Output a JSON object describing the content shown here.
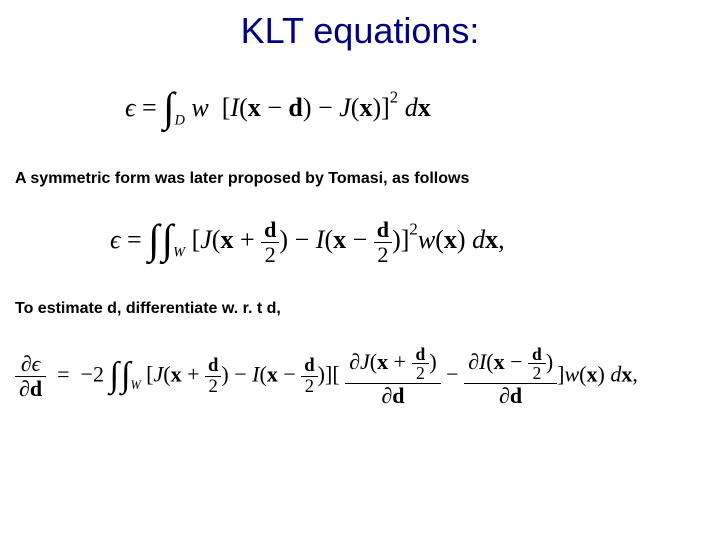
{
  "title": {
    "text": "KLT equations:",
    "color": "#000080",
    "fontsize": 36
  },
  "body_text_fontsize": 16,
  "eq_color": "#000000",
  "background_color": "#ffffff",
  "equation1": {
    "epsilon": "ϵ",
    "eq": "=",
    "int": "∫",
    "domain": "D",
    "w": "w",
    "lb": "[",
    "I": "I",
    "lp1": "(",
    "x": "x",
    "minus": "−",
    "d": "d",
    "rp1": ")",
    "J": "J",
    "lp2": "(",
    "rp2": ")",
    "rb": "]",
    "sq": "2",
    "dx": "dx",
    "fontsize": 26
  },
  "text1": "A symmetric form was later proposed by Tomasi, as follows",
  "equation2": {
    "epsilon": "ϵ",
    "eq": "=",
    "int": "∫",
    "domain": "W",
    "lb": "[",
    "J": "J",
    "lp1": "(",
    "x": "x",
    "plus": "+",
    "d": "d",
    "two": "2",
    "rp1": ")",
    "minus": "−",
    "I": "I",
    "lp2": "(",
    "rp2": ")",
    "rb": "]",
    "sq": "2",
    "w": "w",
    "lp3": "(",
    "rp3": ")",
    "dx": "dx",
    "comma": ",",
    "fontsize": 26
  },
  "text2_a": "To estimate ",
  "text2_d1": "d",
  "text2_b": ", differentiate w. r. t ",
  "text2_d2": "d,",
  "equation3": {
    "partial": "∂",
    "epsilon": "ϵ",
    "d": "d",
    "eq": "=",
    "minus2": "−2",
    "int": "∫",
    "domain": "W",
    "lb": "[",
    "J": "J",
    "lp": "(",
    "x": "x",
    "plus": "+",
    "two": "2",
    "rp": ")",
    "minus": "−",
    "I": "I",
    "rb": "]",
    "w": "w",
    "dx": "dx",
    "comma": ",",
    "fontsize": 22
  }
}
